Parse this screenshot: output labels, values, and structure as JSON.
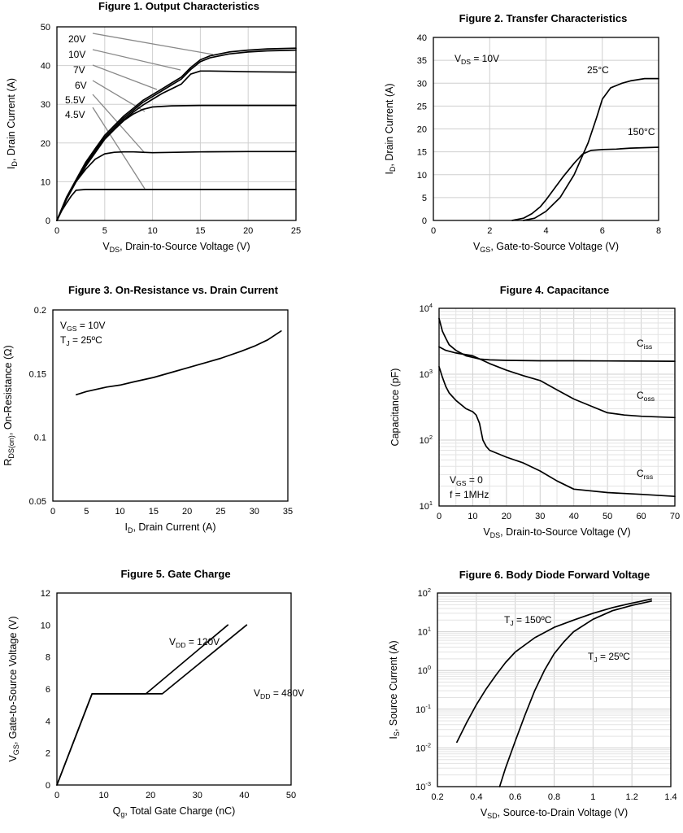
{
  "chart_data": [
    {
      "id": "fig1",
      "type": "line",
      "title": "Figure 1. Output Characteristics",
      "ylabel": [
        "I",
        "D",
        ", Drain Current (A)"
      ],
      "xlabel": [
        "V",
        "DS",
        ", Drain-to-Source Voltage (V)"
      ],
      "xlim": [
        0,
        25
      ],
      "ylim": [
        0,
        50
      ],
      "xticks": [
        0,
        5,
        10,
        15,
        20,
        25
      ],
      "yticks": [
        0,
        10,
        20,
        30,
        40,
        50
      ],
      "grid": true,
      "legend": "leader labels, top-left",
      "series": [
        {
          "name": "20V",
          "x": [
            0,
            1,
            2,
            3,
            4,
            5,
            6,
            7,
            8,
            9,
            10,
            11,
            12,
            13,
            14,
            15,
            16,
            18,
            20,
            22,
            25
          ],
          "y": [
            0,
            6,
            10.5,
            15,
            18.5,
            22,
            24.5,
            27,
            29,
            31,
            32.5,
            34,
            35.5,
            37,
            39.5,
            41.5,
            42.5,
            43.5,
            44,
            44.3,
            44.5
          ]
        },
        {
          "name": "10V",
          "x": [
            0,
            1,
            2,
            3,
            4,
            5,
            6,
            7,
            8,
            9,
            10,
            11,
            12,
            13,
            14,
            15,
            16,
            18,
            20,
            22,
            25
          ],
          "y": [
            0,
            5.8,
            10.2,
            14.5,
            18,
            21.5,
            24,
            26.5,
            28.5,
            30.5,
            32,
            33.5,
            35,
            36.5,
            39,
            41,
            42,
            43,
            43.5,
            43.8,
            44
          ]
        },
        {
          "name": "7V",
          "x": [
            0,
            1,
            2,
            3,
            4,
            5,
            6,
            7,
            8,
            9,
            10,
            11,
            12,
            13,
            14,
            15,
            16,
            18,
            20,
            25
          ],
          "y": [
            0,
            5.5,
            10,
            14,
            17.5,
            21,
            23.5,
            26,
            28,
            29.8,
            31.3,
            32.8,
            34,
            35.2,
            37.8,
            38.6,
            38.6,
            38.5,
            38.4,
            38.3
          ]
        },
        {
          "name": "6V",
          "x": [
            0,
            1,
            2,
            3,
            4,
            5,
            6,
            7,
            8,
            9,
            10,
            12,
            15,
            20,
            25
          ],
          "y": [
            0,
            5.5,
            10,
            14,
            17.5,
            21,
            23.5,
            25.8,
            27.5,
            28.7,
            29.3,
            29.6,
            29.7,
            29.7,
            29.7
          ]
        },
        {
          "name": "5.5V",
          "x": [
            0,
            1,
            2,
            3,
            4,
            5,
            6,
            7,
            8,
            9,
            10,
            15,
            20,
            25
          ],
          "y": [
            0,
            5.5,
            10,
            13.2,
            15.8,
            17.2,
            17.6,
            17.7,
            17.7,
            17.6,
            17.5,
            17.7,
            17.8,
            17.8
          ]
        },
        {
          "name": "4.5V",
          "x": [
            0,
            0.5,
            1,
            1.5,
            2,
            3,
            4,
            5,
            10,
            15,
            20,
            25
          ],
          "y": [
            0,
            2.5,
            4.5,
            6.3,
            7.8,
            8,
            8,
            8,
            8,
            8,
            8,
            8
          ]
        }
      ],
      "labels": [
        "20V",
        "10V",
        "7V",
        "6V",
        "5.5V",
        "4.5V"
      ]
    },
    {
      "id": "fig2",
      "type": "line",
      "title": "Figure 2. Transfer Characteristics",
      "ylabel": [
        "I",
        "D",
        ", Drain Current (A)"
      ],
      "xlabel": [
        "V",
        "GS",
        ", Gate-to-Source Voltage (V)"
      ],
      "xlim": [
        0,
        8
      ],
      "ylim": [
        0,
        40
      ],
      "xticks": [
        0,
        2,
        4,
        6,
        8
      ],
      "yticks": [
        0,
        5,
        10,
        15,
        20,
        25,
        30,
        35,
        40
      ],
      "grid": true,
      "legend": "inline labels",
      "annotation": [
        "V",
        "DS",
        " = 10V"
      ],
      "series": [
        {
          "name": "25°C",
          "x": [
            3.2,
            3.6,
            4,
            4.5,
            5,
            5.5,
            5.8,
            6,
            6.3,
            6.7,
            7,
            7.5,
            8
          ],
          "y": [
            0,
            0.5,
            2,
            5,
            10,
            17,
            22.5,
            26.5,
            29,
            30,
            30.5,
            31,
            31
          ]
        },
        {
          "name": "150°C",
          "x": [
            2.8,
            3.2,
            3.5,
            3.8,
            4,
            4.3,
            4.6,
            5,
            5.3,
            5.6,
            6,
            6.5,
            7,
            8
          ],
          "y": [
            0,
            0.5,
            1.5,
            3,
            4.5,
            7,
            9.5,
            12.5,
            14.5,
            15.3,
            15.5,
            15.6,
            15.8,
            16
          ]
        }
      ],
      "labels": [
        "25°C",
        "150°C"
      ]
    },
    {
      "id": "fig3",
      "type": "line",
      "title": "Figure 3. On-Resistance vs. Drain Current",
      "ylabel": [
        "R",
        "DS(on)",
        ", On-Resistance (Ω)"
      ],
      "xlabel": [
        "I",
        "D",
        ", Drain Current (A)"
      ],
      "xlim": [
        0,
        35
      ],
      "ylim": [
        0.05,
        0.2
      ],
      "xticks": [
        0,
        5,
        10,
        15,
        20,
        25,
        30,
        35
      ],
      "yticks": [
        0.05,
        0.1,
        0.15,
        0.2
      ],
      "ytick_labels": [
        "0.05",
        "0.1",
        "0.15",
        "0.2"
      ],
      "grid": false,
      "annotations": [
        [
          "V",
          "GS",
          " = 10V"
        ],
        [
          "T",
          "J",
          " = 25ºC"
        ]
      ],
      "series": [
        {
          "name": "",
          "x": [
            3.5,
            5,
            8,
            10,
            12,
            15,
            18,
            20,
            22,
            25,
            28,
            30,
            32,
            34
          ],
          "y": [
            0.1335,
            0.136,
            0.1395,
            0.141,
            0.1435,
            0.147,
            0.1515,
            0.1545,
            0.1575,
            0.162,
            0.1675,
            0.1715,
            0.1765,
            0.1835
          ]
        }
      ]
    },
    {
      "id": "fig4",
      "type": "line",
      "title": "Figure 4. Capacitance",
      "ylabel": [
        "Capacitance (pF)"
      ],
      "xlabel": [
        "V",
        "DS",
        ", Drain-to-Source Voltage (V)"
      ],
      "xlim": [
        0,
        70
      ],
      "ylim": [
        10,
        10000
      ],
      "yscale": "log",
      "xticks": [
        0,
        10,
        20,
        30,
        40,
        50,
        60,
        70
      ],
      "yticks": [
        10,
        100,
        1000,
        10000
      ],
      "ytick_labels": [
        [
          "10",
          "1"
        ],
        [
          "10",
          "2"
        ],
        [
          "10",
          "3"
        ],
        [
          "10",
          "4"
        ]
      ],
      "grid": true,
      "annotations": [
        [
          "V",
          "GS",
          " = 0"
        ],
        [
          "f = 1MHz"
        ]
      ],
      "series": [
        {
          "name": "Ciss",
          "x": [
            0,
            1,
            2,
            3,
            5,
            8,
            10,
            12,
            15,
            20,
            30,
            40,
            50,
            60,
            70
          ],
          "y": [
            7000,
            4500,
            3500,
            2800,
            2300,
            1900,
            1800,
            1700,
            1650,
            1620,
            1600,
            1600,
            1590,
            1580,
            1570
          ]
        },
        {
          "name": "Coss",
          "x": [
            0,
            2,
            5,
            10,
            15,
            20,
            25,
            30,
            35,
            40,
            45,
            50,
            55,
            60,
            70
          ],
          "y": [
            2600,
            2300,
            2100,
            1900,
            1450,
            1150,
            950,
            800,
            580,
            420,
            330,
            260,
            240,
            230,
            220
          ]
        },
        {
          "name": "Crss",
          "x": [
            0,
            1,
            2,
            3,
            5,
            8,
            10,
            11,
            12,
            13,
            14,
            15,
            20,
            25,
            30,
            35,
            40,
            50,
            60,
            70
          ],
          "y": [
            1300,
            900,
            650,
            520,
            400,
            300,
            270,
            240,
            180,
            100,
            80,
            70,
            55,
            45,
            34,
            24,
            18,
            16,
            15,
            14
          ]
        }
      ],
      "labels": [
        [
          "C",
          "iss"
        ],
        [
          "C",
          "oss"
        ],
        [
          "C",
          "rss"
        ]
      ]
    },
    {
      "id": "fig5",
      "type": "line",
      "title": "Figure 5. Gate Charge",
      "ylabel": [
        "V",
        "GS",
        ", Gate-to-Source Voltage (V)"
      ],
      "xlabel": [
        "Q",
        "g",
        ", Total Gate Charge (nC)"
      ],
      "xlim": [
        0,
        50
      ],
      "ylim": [
        0,
        12
      ],
      "xticks": [
        0,
        10,
        20,
        30,
        40,
        50
      ],
      "yticks": [
        0,
        2,
        4,
        6,
        8,
        10,
        12
      ],
      "grid": false,
      "series": [
        {
          "name": "V_DD = 120V",
          "x": [
            0,
            7.5,
            19,
            36.5
          ],
          "y": [
            0,
            5.7,
            5.7,
            10
          ]
        },
        {
          "name": "V_DD = 480V",
          "x": [
            0,
            7.5,
            22.5,
            40.5
          ],
          "y": [
            0,
            5.7,
            5.7,
            10
          ]
        }
      ],
      "labels": [
        [
          "V",
          "DD",
          " = 120V"
        ],
        [
          "V",
          "DD",
          " = 480V"
        ]
      ]
    },
    {
      "id": "fig6",
      "type": "line",
      "title": "Figure 6. Body Diode Forward Voltage",
      "ylabel": [
        "I",
        "S",
        ", Source Current (A)"
      ],
      "xlabel": [
        "V",
        "SD",
        ", Source-to-Drain Voltage (V)"
      ],
      "xlim": [
        0.2,
        1.4
      ],
      "ylim": [
        0.001,
        100
      ],
      "yscale": "log",
      "xticks": [
        0.2,
        0.4,
        0.6,
        0.8,
        1.0,
        1.2,
        1.4
      ],
      "xtick_labels": [
        "0.2",
        "0.4",
        "0.6",
        "0.8",
        "1",
        "1.2",
        "1.4"
      ],
      "yticks": [
        0.001,
        0.01,
        0.1,
        1,
        10,
        100
      ],
      "ytick_labels": [
        [
          "10",
          "-3"
        ],
        [
          "10",
          "-2"
        ],
        [
          "10",
          "-1"
        ],
        [
          "10",
          "0"
        ],
        [
          "10",
          "1"
        ],
        [
          "10",
          "2"
        ]
      ],
      "grid": true,
      "series": [
        {
          "name": "T_J = 150ºC",
          "x": [
            0.3,
            0.35,
            0.4,
            0.45,
            0.5,
            0.55,
            0.6,
            0.7,
            0.8,
            0.9,
            1.0,
            1.1,
            1.2,
            1.3
          ],
          "y": [
            0.014,
            0.045,
            0.13,
            0.33,
            0.75,
            1.6,
            3,
            7,
            13,
            20,
            30,
            42,
            55,
            70
          ]
        },
        {
          "name": "T_J = 25ºC",
          "x": [
            0.52,
            0.55,
            0.6,
            0.65,
            0.7,
            0.75,
            0.8,
            0.85,
            0.9,
            1.0,
            1.1,
            1.2,
            1.3
          ],
          "y": [
            0.001,
            0.003,
            0.015,
            0.07,
            0.3,
            1,
            2.7,
            5.5,
            10,
            21,
            35,
            48,
            62
          ]
        }
      ],
      "labels": [
        [
          "T",
          "J",
          " = 150ºC"
        ],
        [
          "T",
          "J",
          " = 25ºC"
        ]
      ]
    }
  ]
}
